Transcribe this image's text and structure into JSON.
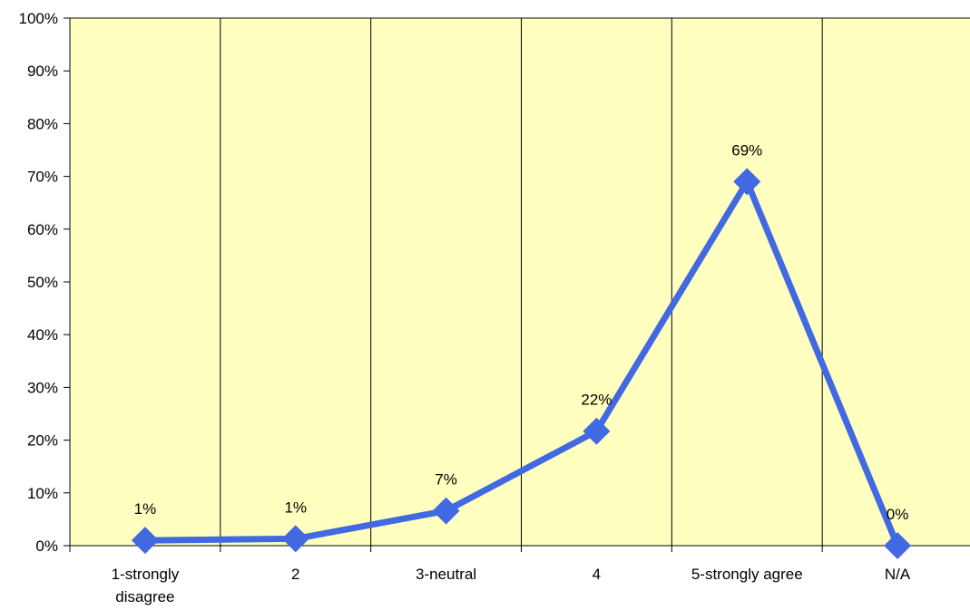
{
  "chart_data": {
    "type": "line",
    "title": "",
    "xlabel": "",
    "ylabel": "",
    "categories": [
      "1-strongly disagree",
      "2",
      "3-neutral",
      "4",
      "5-strongly agree",
      "N/A"
    ],
    "category_lines": [
      [
        "1-strongly",
        "disagree"
      ],
      [
        "2"
      ],
      [
        "3-neutral"
      ],
      [
        "4"
      ],
      [
        "5-strongly agree"
      ],
      [
        "N/A"
      ]
    ],
    "series": [
      {
        "values": [
          1,
          1.3,
          6.6,
          21.7,
          69,
          0
        ],
        "data_labels": [
          "1%",
          "1%",
          "7%",
          "22%",
          "69%",
          "0%"
        ]
      }
    ],
    "ylim": [
      0,
      100
    ],
    "y_ticks": [
      0,
      10,
      20,
      30,
      40,
      50,
      60,
      70,
      80,
      90,
      100
    ],
    "y_tick_labels": [
      "0%",
      "10%",
      "20%",
      "30%",
      "40%",
      "50%",
      "60%",
      "70%",
      "80%",
      "90%",
      "100%"
    ],
    "grid": "vertical category separators",
    "legend": "none",
    "colors": {
      "plot_background": "#FFFFC0",
      "series_line": "#4169E1",
      "axis": "#000000"
    },
    "marker": "diamond"
  }
}
